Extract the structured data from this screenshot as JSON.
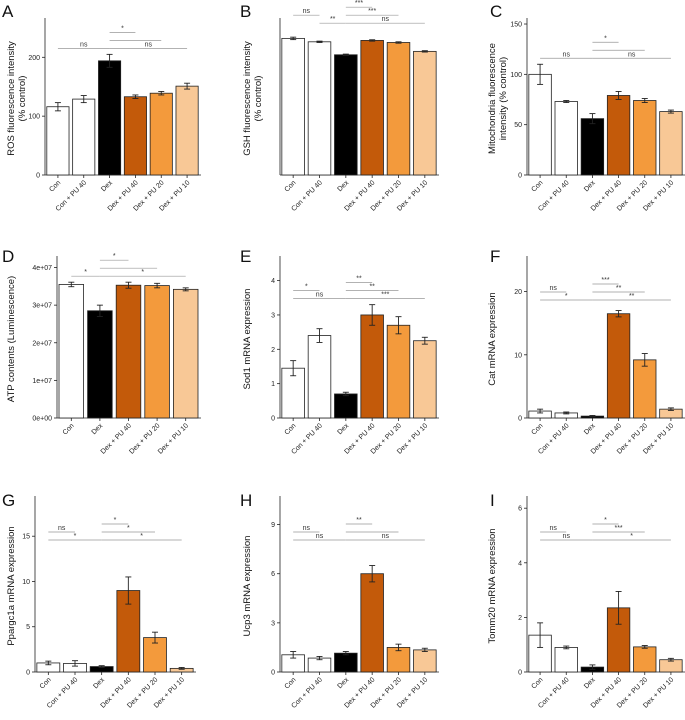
{
  "colors": {
    "Con": "#ffffff",
    "Con + PU 40": "#ffffff",
    "Dex": "#000000",
    "Dex + PU 40": "#c35a0a",
    "Dex + PU 20": "#f39a3c",
    "Dex + PU 10": "#f8c896"
  },
  "chart_data": [
    {
      "type": "bar",
      "panel": "A",
      "ylabel": "ROS fluorescence intensity\n(% control)",
      "categories": [
        "Con",
        "Con + PU 40",
        "Dex",
        "Dex + PU 40",
        "Dex + PU 20",
        "Dex + PU 10"
      ],
      "values": [
        116,
        129,
        194,
        133,
        139,
        151
      ],
      "errors": [
        7,
        6,
        11,
        3,
        3,
        5
      ],
      "ylim": [
        0,
        260
      ],
      "yticks": [
        0,
        100,
        200
      ],
      "ytick_labels": [
        "0",
        "100",
        "200"
      ],
      "brackets": [
        {
          "from": 0,
          "to": 2,
          "label": "ns",
          "level": 0
        },
        {
          "from": 2,
          "to": 3,
          "label": "*",
          "level": 2
        },
        {
          "from": 2,
          "to": 4,
          "label": "",
          "level": 1
        },
        {
          "from": 2,
          "to": 5,
          "label": "ns",
          "level": 0
        }
      ]
    },
    {
      "type": "bar",
      "panel": "B",
      "ylabel": "GSH fluorescence intensity\n(% control)",
      "categories": [
        "Con",
        "Con + PU 40",
        "Dex",
        "Dex + PU 40",
        "Dex + PU 20",
        "Dex + PU 10"
      ],
      "values": [
        100,
        97.5,
        88,
        98.5,
        97,
        90.5
      ],
      "errors": [
        0.9,
        0.5,
        0.5,
        0.5,
        0.5,
        0.5
      ],
      "ylim": [
        0,
        112
      ],
      "yticks": [],
      "ytick_labels": [],
      "brackets": [
        {
          "from": 0,
          "to": 1,
          "label": "ns",
          "level": 2
        },
        {
          "from": 1,
          "to": 2,
          "label": "**",
          "level": 1
        },
        {
          "from": 2,
          "to": 3,
          "label": "***",
          "level": 3
        },
        {
          "from": 2,
          "to": 4,
          "label": "***",
          "level": 2
        },
        {
          "from": 2,
          "to": 5,
          "label": "ns",
          "level": 1
        }
      ]
    },
    {
      "type": "bar",
      "panel": "C",
      "ylabel": "Mitochondria fluorescence\nintensity (% control)",
      "categories": [
        "Con",
        "Con + PU 40",
        "Dex",
        "Dex + PU 40",
        "Dex + PU 20",
        "Dex + PU 10"
      ],
      "values": [
        100,
        73,
        56,
        79,
        74,
        63
      ],
      "errors": [
        10,
        1,
        5,
        4,
        2,
        1.5
      ],
      "ylim": [
        0,
        152
      ],
      "yticks": [
        0,
        50,
        100,
        150
      ],
      "ytick_labels": [
        "0",
        "50",
        "100",
        "150"
      ],
      "brackets": [
        {
          "from": 0,
          "to": 2,
          "label": "ns",
          "level": 0
        },
        {
          "from": 2,
          "to": 3,
          "label": "*",
          "level": 2
        },
        {
          "from": 2,
          "to": 4,
          "label": "",
          "level": 1
        },
        {
          "from": 2,
          "to": 5,
          "label": "ns",
          "level": 0
        }
      ]
    },
    {
      "type": "bar",
      "panel": "D",
      "ylabel": "ATP contents (Luminescence)",
      "categories": [
        "Con",
        "Dex",
        "Dex + PU 40",
        "Dex + PU 20",
        "Dex + PU 10"
      ],
      "values": [
        35500000,
        28500000,
        35300000,
        35200000,
        34200000
      ],
      "errors": [
        600000,
        1500000,
        800000,
        600000,
        400000
      ],
      "ylim": [
        0,
        42000000
      ],
      "yticks": [
        0,
        10000000,
        20000000,
        30000000,
        40000000
      ],
      "ytick_labels": [
        "0e+00",
        "1e+07",
        "2e+07",
        "3e+07",
        "4e+07"
      ],
      "brackets": [
        {
          "from": 0,
          "to": 1,
          "label": "*",
          "level": 0
        },
        {
          "from": 1,
          "to": 2,
          "label": "*",
          "level": 2
        },
        {
          "from": 1,
          "to": 3,
          "label": "",
          "level": 1
        },
        {
          "from": 1,
          "to": 4,
          "label": "*",
          "level": 0
        }
      ]
    },
    {
      "type": "bar",
      "panel": "E",
      "ylabel": "Sod1 mRNA expression",
      "categories": [
        "Con",
        "Con + PU 40",
        "Dex",
        "Dex + PU 40",
        "Dex + PU 20",
        "Dex + PU 10"
      ],
      "values": [
        1.45,
        2.4,
        0.7,
        3.0,
        2.7,
        2.25
      ],
      "errors": [
        0.22,
        0.2,
        0.05,
        0.3,
        0.25,
        0.1
      ],
      "ylim": [
        0,
        4.6
      ],
      "yticks": [
        0,
        1,
        2,
        3,
        4
      ],
      "ytick_labels": [
        "0",
        "1",
        "2",
        "3",
        "4"
      ],
      "brackets": [
        {
          "from": 0,
          "to": 1,
          "label": "*",
          "level": 1
        },
        {
          "from": 0,
          "to": 2,
          "label": "ns",
          "level": 0
        },
        {
          "from": 2,
          "to": 3,
          "label": "**",
          "level": 2
        },
        {
          "from": 2,
          "to": 4,
          "label": "**",
          "level": 1
        },
        {
          "from": 2,
          "to": 5,
          "label": "***",
          "level": 0
        }
      ]
    },
    {
      "type": "bar",
      "panel": "F",
      "ylabel": "Cat mRNA expression",
      "categories": [
        "Con",
        "Con + PU 40",
        "Dex",
        "Dex + PU 40",
        "Dex + PU 20",
        "Dex + PU 10"
      ],
      "values": [
        1.1,
        0.8,
        0.3,
        16.5,
        9.2,
        1.4
      ],
      "errors": [
        0.3,
        0.15,
        0.1,
        0.5,
        1.0,
        0.2
      ],
      "ylim": [
        0,
        25
      ],
      "yticks": [
        0,
        10,
        20
      ],
      "ytick_labels": [
        "0",
        "10",
        "20"
      ],
      "brackets": [
        {
          "from": 0,
          "to": 1,
          "label": "ns",
          "level": 1
        },
        {
          "from": 0,
          "to": 2,
          "label": "*",
          "level": 0
        },
        {
          "from": 2,
          "to": 3,
          "label": "***",
          "level": 2
        },
        {
          "from": 2,
          "to": 4,
          "label": "**",
          "level": 1
        },
        {
          "from": 2,
          "to": 5,
          "label": "**",
          "level": 0
        }
      ]
    },
    {
      "type": "bar",
      "panel": "G",
      "ylabel": "Ppargc1a mRNA expression",
      "categories": [
        "Con",
        "Con + PU 40",
        "Dex",
        "Dex + PU 40",
        "Dex + PU 20",
        "Dex + PU 10"
      ],
      "values": [
        1.0,
        0.95,
        0.6,
        9.0,
        3.8,
        0.4
      ],
      "errors": [
        0.2,
        0.3,
        0.1,
        1.5,
        0.6,
        0.1
      ],
      "ylim": [
        0,
        19
      ],
      "yticks": [
        0,
        5,
        10,
        15
      ],
      "ytick_labels": [
        "0",
        "5",
        "10",
        "15"
      ],
      "brackets": [
        {
          "from": 0,
          "to": 1,
          "label": "ns",
          "level": 1
        },
        {
          "from": 0,
          "to": 2,
          "label": "*",
          "level": 0
        },
        {
          "from": 2,
          "to": 3,
          "label": "*",
          "level": 2
        },
        {
          "from": 2,
          "to": 4,
          "label": "*",
          "level": 1
        },
        {
          "from": 2,
          "to": 5,
          "label": "*",
          "level": 0
        }
      ]
    },
    {
      "type": "bar",
      "panel": "H",
      "ylabel": "Ucp3 mRNA expression",
      "categories": [
        "Con",
        "Con + PU 40",
        "Dex",
        "Dex + PU 40",
        "Dex + PU 20",
        "Dex + PU 10"
      ],
      "values": [
        1.05,
        0.85,
        1.15,
        6.0,
        1.5,
        1.35
      ],
      "errors": [
        0.2,
        0.1,
        0.1,
        0.5,
        0.2,
        0.1
      ],
      "ylim": [
        0,
        10.5
      ],
      "yticks": [
        0,
        3,
        6,
        9
      ],
      "ytick_labels": [
        "0",
        "3",
        "6",
        "9"
      ],
      "brackets": [
        {
          "from": 0,
          "to": 1,
          "label": "ns",
          "level": 1
        },
        {
          "from": 0,
          "to": 2,
          "label": "ns",
          "level": 0
        },
        {
          "from": 2,
          "to": 3,
          "label": "**",
          "level": 2
        },
        {
          "from": 2,
          "to": 4,
          "label": "",
          "level": 1
        },
        {
          "from": 2,
          "to": 5,
          "label": "ns",
          "level": 0
        }
      ]
    },
    {
      "type": "bar",
      "panel": "I",
      "ylabel": "Tomm20 mRNA expression",
      "categories": [
        "Con",
        "Con + PU 40",
        "Dex",
        "Dex + PU 40",
        "Dex + PU 20",
        "Dex + PU 10"
      ],
      "values": [
        1.35,
        0.9,
        0.18,
        2.35,
        0.92,
        0.45
      ],
      "errors": [
        0.45,
        0.05,
        0.08,
        0.6,
        0.05,
        0.05
      ],
      "ylim": [
        0,
        6.3
      ],
      "yticks": [
        0,
        2,
        4,
        6
      ],
      "ytick_labels": [
        "0",
        "2",
        "4",
        "6"
      ],
      "brackets": [
        {
          "from": 0,
          "to": 1,
          "label": "ns",
          "level": 1
        },
        {
          "from": 0,
          "to": 2,
          "label": "ns",
          "level": 0
        },
        {
          "from": 2,
          "to": 3,
          "label": "*",
          "level": 2
        },
        {
          "from": 2,
          "to": 4,
          "label": "***",
          "level": 1
        },
        {
          "from": 2,
          "to": 5,
          "label": "*",
          "level": 0
        }
      ]
    }
  ]
}
